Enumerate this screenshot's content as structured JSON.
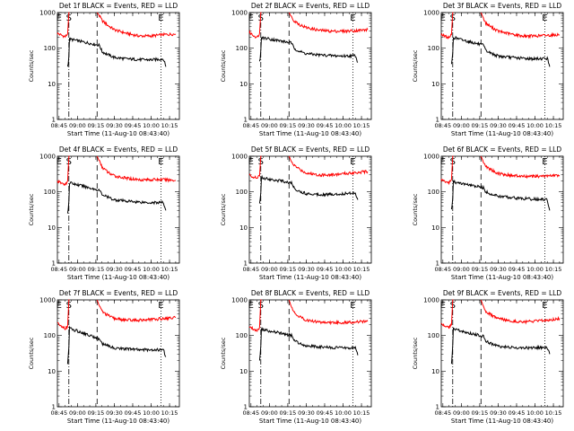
{
  "figure": {
    "background": "#ffffff",
    "event_color": "#000000",
    "lld_color": "#ff0000"
  },
  "chart_data": [
    {
      "type": "line",
      "title": "Det 1f BLACK = Events, RED = LLD",
      "xlabel": "Start Time (11-Aug-10 08:43:40)",
      "ylabel": "Counts/sec",
      "y_scale": "log",
      "ylim": [
        1,
        1000
      ],
      "y_tick_labels": [
        "1",
        "10",
        "100",
        "1000"
      ],
      "x_tick_labels": [
        "08:45",
        "09:00",
        "09:15",
        "09:30",
        "09:45",
        "10:00",
        "10:15"
      ],
      "xlim": [
        "08:43:40",
        "10:23:00"
      ],
      "markers": {
        "E1": "08:45",
        "S": "08:53",
        "E2": "10:08",
        "dash_dot_x": "08:53",
        "dashed_x": "09:16",
        "dotted_x": "10:08"
      },
      "series": [
        {
          "color": "red",
          "x": [
            "08:43:40",
            "08:46",
            "08:50",
            "08:52",
            "08:53",
            "08:54",
            "09:16",
            "09:18",
            "09:20",
            "09:25",
            "09:30",
            "09:40",
            "09:50",
            "10:00",
            "10:10",
            "10:20"
          ],
          "values": [
            260,
            240,
            210,
            250,
            1000,
            1000,
            1000,
            800,
            600,
            430,
            330,
            260,
            220,
            220,
            240,
            250
          ]
        },
        {
          "color": "black",
          "x": [
            "08:52",
            "08:52:30",
            "08:53",
            "08:53:30",
            "09:18",
            "09:20",
            "09:25",
            "09:30",
            "09:40",
            "09:50",
            "10:00",
            "10:10",
            "10:12"
          ],
          "values": [
            30,
            40,
            60,
            180,
            120,
            80,
            65,
            55,
            50,
            48,
            47,
            50,
            30
          ]
        }
      ]
    },
    {
      "type": "line",
      "title": "Det 2f BLACK = Events, RED = LLD",
      "xlabel": "Start Time (11-Aug-10 08:43:40)",
      "ylabel": "Counts/sec",
      "y_scale": "log",
      "ylim": [
        1,
        1000
      ],
      "y_tick_labels": [
        "1",
        "10",
        "100",
        "1000"
      ],
      "x_tick_labels": [
        "08:45",
        "09:00",
        "09:15",
        "09:30",
        "09:45",
        "10:00",
        "10:15"
      ],
      "xlim": [
        "08:43:40",
        "10:23:00"
      ],
      "markers": {
        "E1": "08:45",
        "S": "08:53",
        "E2": "10:08",
        "dash_dot_x": "08:53",
        "dashed_x": "09:16",
        "dotted_x": "10:08"
      },
      "series": [
        {
          "color": "red",
          "x": [
            "08:43:40",
            "08:46",
            "08:50",
            "08:52",
            "08:53",
            "08:54",
            "09:16",
            "09:18",
            "09:20",
            "09:25",
            "09:30",
            "09:40",
            "09:50",
            "10:00",
            "10:10",
            "10:20"
          ],
          "values": [
            280,
            240,
            200,
            260,
            1000,
            1000,
            1000,
            750,
            600,
            450,
            380,
            320,
            300,
            300,
            310,
            330
          ]
        },
        {
          "color": "black",
          "x": [
            "08:52",
            "08:52:30",
            "08:53",
            "08:53:30",
            "09:18",
            "09:20",
            "09:25",
            "09:30",
            "09:40",
            "09:50",
            "10:00",
            "10:10",
            "10:12"
          ],
          "values": [
            40,
            55,
            80,
            200,
            140,
            100,
            80,
            70,
            65,
            62,
            60,
            62,
            40
          ]
        }
      ]
    },
    {
      "type": "line",
      "title": "Det 3f BLACK = Events, RED = LLD",
      "xlabel": "Start Time (11-Aug-10 08:43:40)",
      "ylabel": "Counts/sec",
      "y_scale": "log",
      "ylim": [
        1,
        1000
      ],
      "y_tick_labels": [
        "1",
        "10",
        "100",
        "1000"
      ],
      "x_tick_labels": [
        "08:45",
        "09:00",
        "09:15",
        "09:30",
        "09:45",
        "10:00",
        "10:15"
      ],
      "xlim": [
        "08:43:40",
        "10:23:00"
      ],
      "markers": {
        "E1": "08:45",
        "S": "08:53",
        "E2": "10:08",
        "dash_dot_x": "08:53",
        "dashed_x": "09:16",
        "dotted_x": "10:08"
      },
      "series": [
        {
          "color": "red",
          "x": [
            "08:43:40",
            "08:46",
            "08:50",
            "08:52",
            "08:53",
            "08:54",
            "09:16",
            "09:18",
            "09:20",
            "09:25",
            "09:30",
            "09:40",
            "09:50",
            "10:00",
            "10:10",
            "10:20"
          ],
          "values": [
            250,
            220,
            200,
            240,
            1000,
            1000,
            1000,
            700,
            500,
            380,
            300,
            250,
            220,
            220,
            230,
            240
          ]
        },
        {
          "color": "black",
          "x": [
            "08:52",
            "08:52:30",
            "08:53",
            "08:53:30",
            "09:18",
            "09:20",
            "09:25",
            "09:30",
            "09:40",
            "09:50",
            "10:00",
            "10:10",
            "10:12"
          ],
          "values": [
            35,
            50,
            70,
            200,
            120,
            85,
            70,
            60,
            55,
            52,
            50,
            52,
            30
          ]
        }
      ]
    },
    {
      "type": "line",
      "title": "Det 4f BLACK = Events, RED = LLD",
      "xlabel": "Start Time (11-Aug-10 08:43:40)",
      "ylabel": "Counts/sec",
      "y_scale": "log",
      "ylim": [
        1,
        1000
      ],
      "y_tick_labels": [
        "1",
        "10",
        "100",
        "1000"
      ],
      "x_tick_labels": [
        "08:45",
        "09:00",
        "09:15",
        "09:30",
        "09:45",
        "10:00",
        "10:15"
      ],
      "xlim": [
        "08:43:40",
        "10:23:00"
      ],
      "markers": {
        "E1": "08:45",
        "S": "08:53",
        "E2": "10:08",
        "dash_dot_x": "08:53",
        "dashed_x": "09:16",
        "dotted_x": "10:08"
      },
      "series": [
        {
          "color": "red",
          "x": [
            "08:43:40",
            "08:46",
            "08:50",
            "08:52",
            "08:53",
            "08:54",
            "09:16",
            "09:18",
            "09:20",
            "09:25",
            "09:30",
            "09:40",
            "09:50",
            "10:00",
            "10:10",
            "10:20"
          ],
          "values": [
            200,
            180,
            160,
            200,
            1000,
            1000,
            1000,
            700,
            500,
            350,
            280,
            240,
            220,
            220,
            220,
            210
          ]
        },
        {
          "color": "black",
          "x": [
            "08:52",
            "08:52:30",
            "08:53",
            "08:53:30",
            "09:18",
            "09:20",
            "09:25",
            "09:30",
            "09:40",
            "09:50",
            "10:00",
            "10:10",
            "10:12"
          ],
          "values": [
            25,
            35,
            55,
            180,
            110,
            85,
            70,
            60,
            55,
            52,
            50,
            50,
            30
          ]
        }
      ]
    },
    {
      "type": "line",
      "title": "Det 5f BLACK = Events, RED = LLD",
      "xlabel": "Start Time (11-Aug-10 08:43:40)",
      "ylabel": "Counts/sec",
      "y_scale": "log",
      "ylim": [
        1,
        1000
      ],
      "y_tick_labels": [
        "1",
        "10",
        "100",
        "1000"
      ],
      "x_tick_labels": [
        "08:45",
        "09:00",
        "09:15",
        "09:30",
        "09:45",
        "10:00",
        "10:15"
      ],
      "xlim": [
        "08:43:40",
        "10:23:00"
      ],
      "markers": {
        "E1": "08:45",
        "S": "08:53",
        "E2": "10:08",
        "dash_dot_x": "08:53",
        "dashed_x": "09:16",
        "dotted_x": "10:08"
      },
      "series": [
        {
          "color": "red",
          "x": [
            "08:43:40",
            "08:46",
            "08:50",
            "08:52",
            "08:53",
            "08:54",
            "09:16",
            "09:18",
            "09:20",
            "09:25",
            "09:30",
            "09:40",
            "09:50",
            "10:00",
            "10:10",
            "10:20"
          ],
          "values": [
            300,
            270,
            240,
            280,
            1000,
            1000,
            1000,
            700,
            560,
            420,
            340,
            300,
            300,
            320,
            350,
            370
          ]
        },
        {
          "color": "black",
          "x": [
            "08:52",
            "08:52:30",
            "08:53",
            "08:53:30",
            "09:18",
            "09:20",
            "09:25",
            "09:30",
            "09:40",
            "09:50",
            "10:00",
            "10:10",
            "10:12"
          ],
          "values": [
            45,
            60,
            90,
            250,
            180,
            130,
            100,
            90,
            85,
            85,
            88,
            95,
            60
          ]
        }
      ]
    },
    {
      "type": "line",
      "title": "Det 6f BLACK = Events, RED = LLD",
      "xlabel": "Start Time (11-Aug-10 08:43:40)",
      "ylabel": "Counts/sec",
      "y_scale": "log",
      "ylim": [
        1,
        1000
      ],
      "y_tick_labels": [
        "1",
        "10",
        "100",
        "1000"
      ],
      "x_tick_labels": [
        "08:45",
        "09:00",
        "09:15",
        "09:30",
        "09:45",
        "10:00",
        "10:15"
      ],
      "xlim": [
        "08:43:40",
        "10:23:00"
      ],
      "markers": {
        "E1": "08:45",
        "S": "08:53",
        "E2": "10:08",
        "dash_dot_x": "08:53",
        "dashed_x": "09:16",
        "dotted_x": "10:08"
      },
      "series": [
        {
          "color": "red",
          "x": [
            "08:43:40",
            "08:46",
            "08:50",
            "08:52",
            "08:53",
            "08:54",
            "09:16",
            "09:18",
            "09:20",
            "09:25",
            "09:30",
            "09:40",
            "09:50",
            "10:00",
            "10:10",
            "10:20"
          ],
          "values": [
            220,
            200,
            180,
            220,
            1000,
            1000,
            1000,
            700,
            520,
            400,
            330,
            290,
            270,
            270,
            280,
            290
          ]
        },
        {
          "color": "black",
          "x": [
            "08:52",
            "08:52:30",
            "08:53",
            "08:53:30",
            "09:18",
            "09:20",
            "09:25",
            "09:30",
            "09:40",
            "09:50",
            "10:00",
            "10:10",
            "10:12"
          ],
          "values": [
            30,
            45,
            70,
            190,
            130,
            100,
            85,
            75,
            70,
            65,
            62,
            60,
            30
          ]
        }
      ]
    },
    {
      "type": "line",
      "title": "Det 7f BLACK = Events, RED = LLD",
      "xlabel": "Start Time (11-Aug-10 08:43:40)",
      "ylabel": "Counts/sec",
      "y_scale": "log",
      "ylim": [
        1,
        1000
      ],
      "y_tick_labels": [
        "1",
        "10",
        "100",
        "1000"
      ],
      "x_tick_labels": [
        "08:45",
        "09:00",
        "09:15",
        "09:30",
        "09:45",
        "10:00",
        "10:15"
      ],
      "xlim": [
        "08:43:40",
        "10:23:00"
      ],
      "markers": {
        "E1": "08:45",
        "S": "08:53",
        "E2": "10:08",
        "dash_dot_x": "08:53",
        "dashed_x": "09:16",
        "dotted_x": "10:08"
      },
      "series": [
        {
          "color": "red",
          "x": [
            "08:43:40",
            "08:46",
            "08:50",
            "08:52",
            "08:53",
            "08:54",
            "09:16",
            "09:18",
            "09:20",
            "09:25",
            "09:30",
            "09:40",
            "09:50",
            "10:00",
            "10:10",
            "10:20"
          ],
          "values": [
            220,
            190,
            160,
            180,
            1000,
            1000,
            1000,
            650,
            480,
            360,
            300,
            270,
            270,
            280,
            300,
            320
          ]
        },
        {
          "color": "black",
          "x": [
            "08:52",
            "08:52:30",
            "08:53",
            "08:53:30",
            "09:18",
            "09:20",
            "09:25",
            "09:30",
            "09:40",
            "09:50",
            "10:00",
            "10:10",
            "10:12"
          ],
          "values": [
            15,
            25,
            50,
            160,
            80,
            60,
            50,
            45,
            42,
            40,
            40,
            40,
            25
          ]
        }
      ]
    },
    {
      "type": "line",
      "title": "Det 8f BLACK = Events, RED = LLD",
      "xlabel": "Start Time (11-Aug-10 08:43:40)",
      "ylabel": "Counts/sec",
      "y_scale": "log",
      "ylim": [
        1,
        1000
      ],
      "y_tick_labels": [
        "1",
        "10",
        "100",
        "1000"
      ],
      "x_tick_labels": [
        "08:45",
        "09:00",
        "09:15",
        "09:30",
        "09:45",
        "10:00",
        "10:15"
      ],
      "xlim": [
        "08:43:40",
        "10:23:00"
      ],
      "markers": {
        "E1": "08:45",
        "S": "08:53",
        "E2": "10:08",
        "dash_dot_x": "08:53",
        "dashed_x": "09:16",
        "dotted_x": "10:08"
      },
      "series": [
        {
          "color": "red",
          "x": [
            "08:43:40",
            "08:46",
            "08:50",
            "08:52",
            "08:53",
            "08:54",
            "09:16",
            "09:18",
            "09:20",
            "09:25",
            "09:30",
            "09:40",
            "09:50",
            "10:00",
            "10:10",
            "10:20"
          ],
          "values": [
            180,
            160,
            140,
            170,
            1000,
            1000,
            1000,
            620,
            450,
            330,
            270,
            240,
            230,
            230,
            240,
            250
          ]
        },
        {
          "color": "black",
          "x": [
            "08:52",
            "08:52:30",
            "08:53",
            "08:53:30",
            "09:18",
            "09:20",
            "09:25",
            "09:30",
            "09:40",
            "09:50",
            "10:00",
            "10:10",
            "10:12"
          ],
          "values": [
            20,
            30,
            55,
            150,
            100,
            75,
            60,
            52,
            48,
            46,
            45,
            45,
            28
          ]
        }
      ]
    },
    {
      "type": "line",
      "title": "Det 9f BLACK = Events, RED = LLD",
      "xlabel": "Start Time (11-Aug-10 08:43:40)",
      "ylabel": "Counts/sec",
      "y_scale": "log",
      "ylim": [
        1,
        1000
      ],
      "y_tick_labels": [
        "1",
        "10",
        "100",
        "1000"
      ],
      "x_tick_labels": [
        "08:45",
        "09:00",
        "09:15",
        "09:30",
        "09:45",
        "10:00",
        "10:15"
      ],
      "xlim": [
        "08:43:40",
        "10:23:00"
      ],
      "markers": {
        "E1": "08:45",
        "S": "08:53",
        "E2": "10:08",
        "dash_dot_x": "08:53",
        "dashed_x": "09:16",
        "dotted_x": "10:08"
      },
      "series": [
        {
          "color": "red",
          "x": [
            "08:43:40",
            "08:46",
            "08:50",
            "08:52",
            "08:53",
            "08:54",
            "09:16",
            "09:18",
            "09:20",
            "09:25",
            "09:30",
            "09:40",
            "09:50",
            "10:00",
            "10:10",
            "10:20"
          ],
          "values": [
            220,
            190,
            170,
            200,
            1000,
            1000,
            1000,
            650,
            480,
            360,
            300,
            260,
            240,
            250,
            270,
            300
          ]
        },
        {
          "color": "black",
          "x": [
            "08:52",
            "08:52:30",
            "08:53",
            "08:53:30",
            "09:18",
            "09:20",
            "09:25",
            "09:30",
            "09:40",
            "09:50",
            "10:00",
            "10:10",
            "10:12"
          ],
          "values": [
            15,
            25,
            50,
            150,
            95,
            70,
            58,
            50,
            46,
            45,
            45,
            45,
            30
          ]
        }
      ]
    }
  ]
}
